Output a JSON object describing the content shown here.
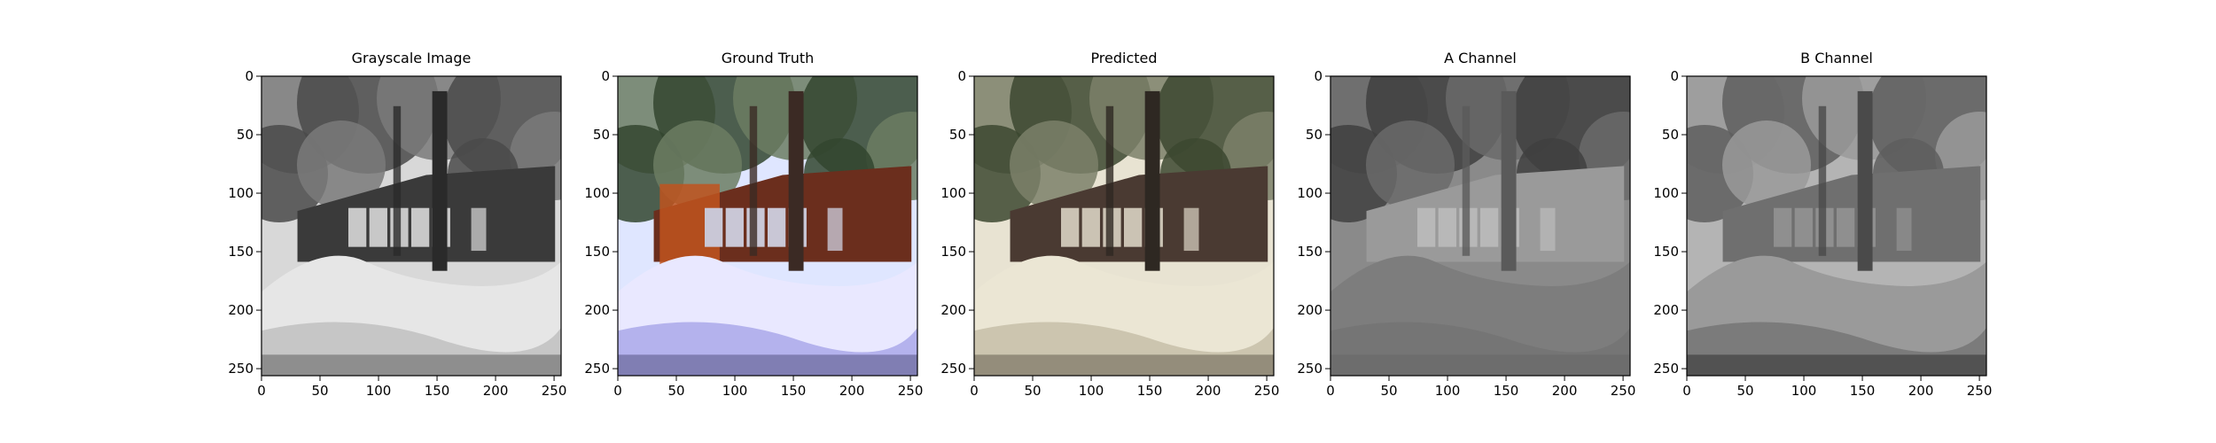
{
  "figure": {
    "panels": [
      {
        "title": "Grayscale Image",
        "variant": "grayscale"
      },
      {
        "title": "Ground Truth",
        "variant": "ground-truth"
      },
      {
        "title": "Predicted",
        "variant": "predicted"
      },
      {
        "title": "A Channel",
        "variant": "a-channel"
      },
      {
        "title": "B Channel",
        "variant": "b-channel"
      }
    ],
    "x_ticks": [
      "0",
      "50",
      "100",
      "150",
      "200",
      "250"
    ],
    "y_ticks": [
      "0",
      "50",
      "100",
      "150",
      "200",
      "250"
    ],
    "image_extent": [
      0,
      256
    ]
  }
}
